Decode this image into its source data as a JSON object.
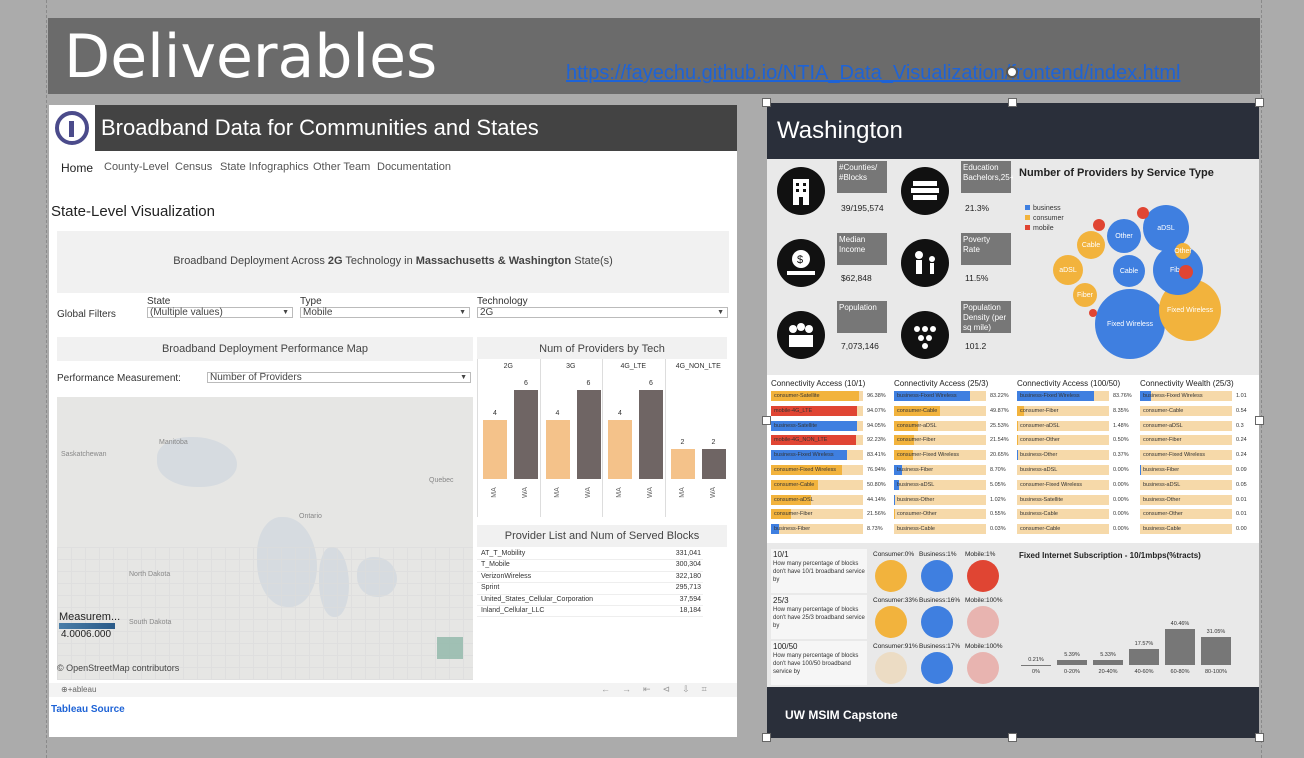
{
  "slide": {
    "title": "Deliverables",
    "url": "https://fayechu.github.io/NTIA_Data_Visualization/frontend/index.html"
  },
  "left": {
    "header_title": "Broadband Data for Communities and States",
    "nav": [
      "Home",
      "County-Level",
      "Census",
      "State Infographics",
      "Other Team",
      "Documentation"
    ],
    "page_heading": "State-Level Visualization",
    "deploy_title_pre": "Broadband Deployment Across ",
    "deploy_title_tech": "2G",
    "deploy_title_mid": " Technology in ",
    "deploy_title_states": "Massachusetts & Washington",
    "deploy_title_post": " State(s)",
    "filters": {
      "label": "Global Filters",
      "state_label": "State",
      "state_value": "(Multiple values)",
      "type_label": "Type",
      "type_value": "Mobile",
      "tech_label": "Technology",
      "tech_value": "2G"
    },
    "map_card_title": "Broadband Deployment Performance Map",
    "perf_label": "Performance Measurement:",
    "perf_value": "Number of Providers",
    "map_labels": {
      "saskatchewan": "Saskatchewan",
      "manitoba": "Manitoba",
      "ontario": "Ontario",
      "quebec": "Quebec",
      "north_dakota": "North Dakota",
      "south_dakota": "South Dakota"
    },
    "map_legend_title": "Measurem...",
    "map_legend_range": "4.0006.000",
    "map_credit": "© OpenStreetMap contributors",
    "tableau_label": "⊕+ableau",
    "source_link": "Tableau Source",
    "provider_list_title": "Provider List and Num of Served Blocks",
    "providers": [
      {
        "name": "AT_T_Mobility",
        "value": "331,041"
      },
      {
        "name": "T_Mobile",
        "value": "300,304"
      },
      {
        "name": "VerizonWireless",
        "value": "322,180"
      },
      {
        "name": "Sprint",
        "value": "295,713"
      },
      {
        "name": "United_States_Cellular_Corporation",
        "value": "37,594"
      },
      {
        "name": "Inland_Cellular_LLC",
        "value": "18,184"
      }
    ]
  },
  "chart_data": {
    "type": "bar",
    "title": "Num of Providers by Tech",
    "categories": [
      "2G",
      "3G",
      "4G_LTE",
      "4G_NON_LTE"
    ],
    "x_sublabels": [
      "MA",
      "WA"
    ],
    "series": [
      {
        "name": "MA",
        "values": [
          4,
          4,
          4,
          2
        ]
      },
      {
        "name": "WA",
        "values": [
          6,
          6,
          6,
          2
        ]
      }
    ],
    "colors": {
      "MA": "#f4c28a",
      "WA": "#6f6564"
    },
    "ylim": [
      0,
      7
    ],
    "grid": false
  },
  "right": {
    "state": "Washington",
    "stats": [
      {
        "label": "#Counties/ #Blocks",
        "value": "39/195,574"
      },
      {
        "label": "Education Bachelors,25+",
        "value": "21.3%"
      },
      {
        "label": "Median Income",
        "value": "$62,848"
      },
      {
        "label": "Poverty Rate",
        "value": "11.5%"
      },
      {
        "label": "Population",
        "value": "7,073,146"
      },
      {
        "label": "Population Density (per sq mile)",
        "value": "101.2"
      }
    ],
    "bubble_title": "Number of Providers by Service Type",
    "bubble_legend": [
      {
        "label": "business",
        "color": "#3f7fe0"
      },
      {
        "label": "consumer",
        "color": "#f2b33d"
      },
      {
        "label": "mobile",
        "color": "#e04533"
      }
    ],
    "bubbles": [
      {
        "label": "Fixed Wireless",
        "color": "#3f7fe0"
      },
      {
        "label": "Fixed Wireless",
        "color": "#f2b33d"
      },
      {
        "label": "Fiber",
        "color": "#3f7fe0"
      },
      {
        "label": "aDSL",
        "color": "#3f7fe0"
      },
      {
        "label": "Other",
        "color": "#3f7fe0"
      },
      {
        "label": "Cable",
        "color": "#3f7fe0"
      },
      {
        "label": "aDSL",
        "color": "#f2b33d"
      },
      {
        "label": "Cable",
        "color": "#f2b33d"
      },
      {
        "label": "Fiber",
        "color": "#f2b33d"
      },
      {
        "label": "Other",
        "color": "#f2b33d"
      }
    ],
    "conn_titles": [
      "Connectivity Access (10/1)",
      "Connectivity Access (25/3)",
      "Connectivity Access (100/50)",
      "Connectivity Wealth (25/3)"
    ],
    "conn": [
      [
        {
          "name": "consumer-Satellite",
          "value": "96.38%",
          "pct": 0.96,
          "color": "#f2b33d"
        },
        {
          "name": "mobile-4G_LTE",
          "value": "94.07%",
          "pct": 0.94,
          "color": "#e04533"
        },
        {
          "name": "business-Satellite",
          "value": "94.05%",
          "pct": 0.94,
          "color": "#3f7fe0"
        },
        {
          "name": "mobile-4G_NON_LTE",
          "value": "92.23%",
          "pct": 0.92,
          "color": "#e04533"
        },
        {
          "name": "business-Fixed Wireless",
          "value": "83.41%",
          "pct": 0.83,
          "color": "#3f7fe0"
        },
        {
          "name": "consumer-Fixed Wireless",
          "value": "76.94%",
          "pct": 0.77,
          "color": "#f2b33d"
        },
        {
          "name": "consumer-Cable",
          "value": "50.80%",
          "pct": 0.51,
          "color": "#f2b33d"
        },
        {
          "name": "consumer-aDSL",
          "value": "44.14%",
          "pct": 0.44,
          "color": "#f2b33d"
        },
        {
          "name": "consumer-Fiber",
          "value": "21.56%",
          "pct": 0.22,
          "color": "#f2b33d"
        },
        {
          "name": "business-Fiber",
          "value": "8.73%",
          "pct": 0.09,
          "color": "#3f7fe0"
        }
      ],
      [
        {
          "name": "business-Fixed Wireless",
          "value": "83.22%",
          "pct": 0.83,
          "color": "#3f7fe0"
        },
        {
          "name": "consumer-Cable",
          "value": "49.87%",
          "pct": 0.5,
          "color": "#f2b33d"
        },
        {
          "name": "consumer-aDSL",
          "value": "25.53%",
          "pct": 0.26,
          "color": "#f2b33d"
        },
        {
          "name": "consumer-Fiber",
          "value": "21.54%",
          "pct": 0.22,
          "color": "#f2b33d"
        },
        {
          "name": "consumer-Fixed Wireless",
          "value": "20.65%",
          "pct": 0.21,
          "color": "#f2b33d"
        },
        {
          "name": "business-Fiber",
          "value": "8.70%",
          "pct": 0.09,
          "color": "#3f7fe0"
        },
        {
          "name": "business-aDSL",
          "value": "5.05%",
          "pct": 0.05,
          "color": "#3f7fe0"
        },
        {
          "name": "business-Other",
          "value": "1.02%",
          "pct": 0.01,
          "color": "#3f7fe0"
        },
        {
          "name": "consumer-Other",
          "value": "0.55%",
          "pct": 0.006,
          "color": "#f2b33d"
        },
        {
          "name": "business-Cable",
          "value": "0.03%",
          "pct": 0.0,
          "color": "#3f7fe0"
        }
      ],
      [
        {
          "name": "business-Fixed Wireless",
          "value": "83.76%",
          "pct": 0.84,
          "color": "#3f7fe0"
        },
        {
          "name": "consumer-Fiber",
          "value": "8.35%",
          "pct": 0.08,
          "color": "#f2b33d"
        },
        {
          "name": "consumer-aDSL",
          "value": "1.48%",
          "pct": 0.015,
          "color": "#f2b33d"
        },
        {
          "name": "consumer-Other",
          "value": "0.50%",
          "pct": 0.005,
          "color": "#f2b33d"
        },
        {
          "name": "business-Other",
          "value": "0.37%",
          "pct": 0.004,
          "color": "#3f7fe0"
        },
        {
          "name": "business-aDSL",
          "value": "0.00%",
          "pct": 0.0,
          "color": "#3f7fe0"
        },
        {
          "name": "consumer-Fixed Wireless",
          "value": "0.00%",
          "pct": 0.0,
          "color": "#f2b33d"
        },
        {
          "name": "business-Satellite",
          "value": "0.00%",
          "pct": 0.0,
          "color": "#3f7fe0"
        },
        {
          "name": "business-Cable",
          "value": "0.00%",
          "pct": 0.0,
          "color": "#3f7fe0"
        },
        {
          "name": "consumer-Cable",
          "value": "0.00%",
          "pct": 0.0,
          "color": "#f2b33d"
        }
      ],
      [
        {
          "name": "business-Fixed Wireless",
          "value": "1.01",
          "pct": 0.12,
          "color": "#3f7fe0"
        },
        {
          "name": "consumer-Cable",
          "value": "0.54",
          "pct": 0.0,
          "color": "#f2b33d"
        },
        {
          "name": "consumer-aDSL",
          "value": "0.3",
          "pct": 0.0,
          "color": "#f2b33d"
        },
        {
          "name": "consumer-Fiber",
          "value": "0.24",
          "pct": 0.0,
          "color": "#f2b33d"
        },
        {
          "name": "consumer-Fixed Wireless",
          "value": "0.24",
          "pct": 0.0,
          "color": "#f2b33d"
        },
        {
          "name": "business-Fiber",
          "value": "0.09",
          "pct": 0.01,
          "color": "#3f7fe0"
        },
        {
          "name": "business-aDSL",
          "value": "0.05",
          "pct": 0.0,
          "color": "#3f7fe0"
        },
        {
          "name": "business-Other",
          "value": "0.01",
          "pct": 0.0,
          "color": "#3f7fe0"
        },
        {
          "name": "consumer-Other",
          "value": "0.01",
          "pct": 0.0,
          "color": "#f2b33d"
        },
        {
          "name": "business-Cable",
          "value": "0.00",
          "pct": 0.0,
          "color": "#3f7fe0"
        }
      ]
    ],
    "questions": [
      {
        "title": "10/1",
        "text": "How many percentage of blocks don't have 10/1 broadband service by",
        "labels": [
          "Consumer:0%",
          "Business:1%",
          "Mobile:1%"
        ],
        "colors": [
          "#f2b33d",
          "#3f7fe0",
          "#e04533"
        ]
      },
      {
        "title": "25/3",
        "text": "How many percentage of blocks don't have 25/3 broadband service by",
        "labels": [
          "Consumer:33%",
          "Business:16%",
          "Mobile:100%"
        ],
        "colors": [
          "#f2b33d",
          "#3f7fe0",
          "#e8b4b0"
        ]
      },
      {
        "title": "100/50",
        "text": "How many percentage of blocks don't have 100/50 broadband service by",
        "labels": [
          "Consumer:91%",
          "Business:17%",
          "Mobile:100%"
        ],
        "colors": [
          "#ecdcc4",
          "#3f7fe0",
          "#e8b4b0"
        ]
      }
    ],
    "fixed_title": "Fixed Internet Subscription - 10/1mbps(%tracts)",
    "fixed": {
      "categories": [
        "0%",
        "0-20%",
        "20-40%",
        "40-60%",
        "60-80%",
        "80-100%"
      ],
      "values": [
        0.21,
        5.39,
        5.33,
        17.57,
        40.46,
        31.05
      ],
      "labels": [
        "0.21%",
        "5.39%",
        "5.33%",
        "17.57%",
        "40.46%",
        "31.05%"
      ]
    },
    "footer": "UW MSIM Capstone"
  }
}
